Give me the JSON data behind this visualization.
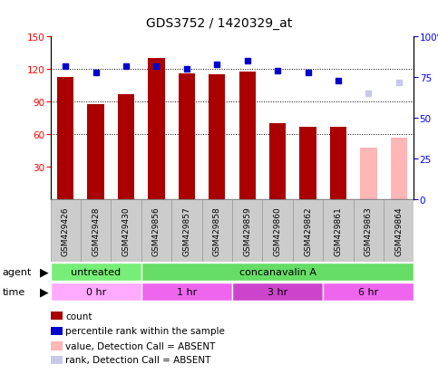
{
  "title": "GDS3752 / 1420329_at",
  "samples": [
    "GSM429426",
    "GSM429428",
    "GSM429430",
    "GSM429856",
    "GSM429857",
    "GSM429858",
    "GSM429859",
    "GSM429860",
    "GSM429862",
    "GSM429861",
    "GSM429863",
    "GSM429864"
  ],
  "bar_values": [
    113,
    88,
    97,
    130,
    116,
    115,
    118,
    70,
    67,
    67,
    48,
    57
  ],
  "bar_colors": [
    "#aa0000",
    "#aa0000",
    "#aa0000",
    "#aa0000",
    "#aa0000",
    "#aa0000",
    "#aa0000",
    "#aa0000",
    "#aa0000",
    "#aa0000",
    "#ffb6b6",
    "#ffb6b6"
  ],
  "rank_values": [
    82,
    78,
    82,
    82,
    80,
    83,
    85,
    79,
    78,
    73,
    65,
    72
  ],
  "rank_colors": [
    "#0000cc",
    "#0000cc",
    "#0000cc",
    "#0000cc",
    "#0000cc",
    "#0000cc",
    "#0000cc",
    "#0000cc",
    "#0000cc",
    "#0000cc",
    "#c8c8e8",
    "#c8c8e8"
  ],
  "ylim_left": [
    0,
    150
  ],
  "ylim_right": [
    0,
    100
  ],
  "yticks_left": [
    30,
    60,
    90,
    120,
    150
  ],
  "yticks_right": [
    0,
    25,
    50,
    75,
    100
  ],
  "grid_lines": [
    60,
    90,
    120
  ],
  "bar_width": 0.55,
  "time_labels": [
    {
      "label": "0 hr",
      "start": 0,
      "end": 3,
      "color": "#ffaaff"
    },
    {
      "label": "1 hr",
      "start": 3,
      "end": 6,
      "color": "#ee66ee"
    },
    {
      "label": "3 hr",
      "start": 6,
      "end": 9,
      "color": "#cc44cc"
    },
    {
      "label": "6 hr",
      "start": 9,
      "end": 12,
      "color": "#ee66ee"
    }
  ],
  "agent_labels": [
    {
      "label": "untreated",
      "start": 0,
      "end": 3,
      "color": "#77ee77"
    },
    {
      "label": "concanavalin A",
      "start": 3,
      "end": 12,
      "color": "#66dd66"
    }
  ],
  "legend_colors": [
    "#aa0000",
    "#0000cc",
    "#ffb6b6",
    "#c8c8e8"
  ],
  "legend_labels": [
    "count",
    "percentile rank within the sample",
    "value, Detection Call = ABSENT",
    "rank, Detection Call = ABSENT"
  ],
  "sample_box_color": "#cccccc",
  "sample_box_edge": "#999999"
}
